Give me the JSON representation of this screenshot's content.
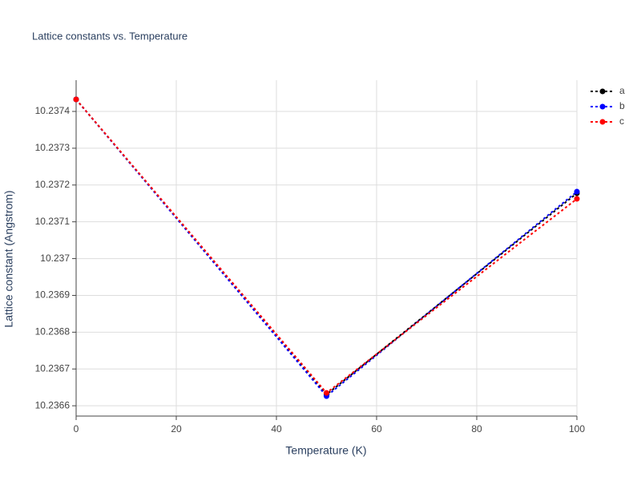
{
  "chart_data": {
    "type": "line",
    "title": "Lattice constants vs. Temperature",
    "x_label": "Temperature (K)",
    "y_label": "Lattice constant (Angstrom)",
    "x": [
      0,
      50,
      100
    ],
    "series": [
      {
        "name": "a",
        "color": "#000000",
        "values": [
          10.2374327,
          10.2366305,
          10.2371777
        ]
      },
      {
        "name": "b",
        "color": "#0000ff",
        "values": [
          10.2374327,
          10.2366262,
          10.237182
        ]
      },
      {
        "name": "c",
        "color": "#ff0000",
        "values": [
          10.2374327,
          10.2366349,
          10.2371624
        ]
      }
    ],
    "xlim": [
      0,
      100
    ],
    "xticks": [
      0,
      20,
      40,
      60,
      80,
      100
    ],
    "ylim": [
      10.236572,
      10.237485
    ],
    "yticks": [
      10.2366,
      10.2367,
      10.2368,
      10.2369,
      10.237,
      10.2371,
      10.2372,
      10.2373,
      10.2374
    ],
    "grid": true,
    "legend": "right"
  }
}
